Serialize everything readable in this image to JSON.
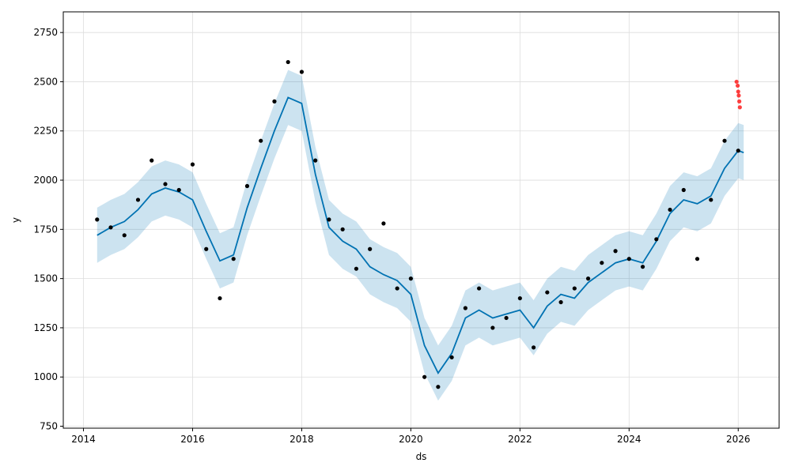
{
  "chart_data": {
    "type": "scatter",
    "title": "",
    "xlabel": "ds",
    "ylabel": "y",
    "xlim": [
      2013.63,
      2026.75
    ],
    "ylim": [
      740,
      2855
    ],
    "grid": true,
    "x_ticks": [
      2014,
      2016,
      2018,
      2020,
      2022,
      2024,
      2026
    ],
    "y_ticks": [
      750,
      1000,
      1250,
      1500,
      1750,
      2000,
      2250,
      2500,
      2750
    ],
    "colors": {
      "observed": "#000000",
      "forecast_line": "#0072B2",
      "uncertainty_band": "#0072B2",
      "anomaly": "#ff0000",
      "grid": "#dddddd"
    },
    "forecast": {
      "x": [
        2014.25,
        2014.5,
        2014.75,
        2015.0,
        2015.25,
        2015.5,
        2015.75,
        2016.0,
        2016.25,
        2016.5,
        2016.75,
        2017.0,
        2017.25,
        2017.5,
        2017.75,
        2018.0,
        2018.25,
        2018.5,
        2018.75,
        2019.0,
        2019.25,
        2019.5,
        2019.75,
        2020.0,
        2020.25,
        2020.5,
        2020.75,
        2021.0,
        2021.25,
        2021.5,
        2021.75,
        2022.0,
        2022.25,
        2022.5,
        2022.75,
        2023.0,
        2023.25,
        2023.5,
        2023.75,
        2024.0,
        2024.25,
        2024.5,
        2024.75,
        2025.0,
        2025.25,
        2025.5,
        2025.75,
        2026.0,
        2026.1
      ],
      "yhat": [
        1720,
        1760,
        1790,
        1850,
        1930,
        1960,
        1940,
        1900,
        1740,
        1590,
        1620,
        1860,
        2060,
        2250,
        2420,
        2390,
        2030,
        1760,
        1690,
        1650,
        1560,
        1520,
        1490,
        1420,
        1160,
        1020,
        1120,
        1300,
        1340,
        1300,
        1320,
        1340,
        1250,
        1360,
        1420,
        1400,
        1480,
        1530,
        1580,
        1600,
        1580,
        1690,
        1830,
        1900,
        1880,
        1920,
        2060,
        2150,
        2140
      ],
      "lower": [
        1580,
        1620,
        1650,
        1710,
        1790,
        1820,
        1800,
        1760,
        1600,
        1450,
        1480,
        1720,
        1920,
        2110,
        2280,
        2250,
        1890,
        1620,
        1550,
        1510,
        1420,
        1380,
        1350,
        1280,
        1020,
        880,
        980,
        1160,
        1200,
        1160,
        1180,
        1200,
        1110,
        1220,
        1280,
        1260,
        1340,
        1390,
        1440,
        1460,
        1440,
        1550,
        1690,
        1760,
        1740,
        1780,
        1920,
        2010,
        2000
      ],
      "upper": [
        1860,
        1900,
        1930,
        1990,
        2070,
        2100,
        2080,
        2040,
        1880,
        1730,
        1760,
        2000,
        2200,
        2390,
        2560,
        2530,
        2170,
        1900,
        1830,
        1790,
        1700,
        1660,
        1630,
        1560,
        1300,
        1160,
        1260,
        1440,
        1480,
        1440,
        1460,
        1480,
        1390,
        1500,
        1560,
        1540,
        1620,
        1670,
        1720,
        1740,
        1720,
        1830,
        1970,
        2040,
        2020,
        2060,
        2200,
        2290,
        2280
      ]
    },
    "observed": {
      "x": [
        2014.25,
        2014.5,
        2014.75,
        2015.0,
        2015.25,
        2015.5,
        2015.75,
        2016.0,
        2016.25,
        2016.5,
        2016.75,
        2017.0,
        2017.25,
        2017.5,
        2017.75,
        2018.0,
        2018.25,
        2018.5,
        2018.75,
        2019.0,
        2019.25,
        2019.5,
        2019.75,
        2020.0,
        2020.25,
        2020.5,
        2020.75,
        2021.0,
        2021.25,
        2021.5,
        2021.75,
        2022.0,
        2022.25,
        2022.5,
        2022.75,
        2023.0,
        2023.25,
        2023.5,
        2023.75,
        2024.0,
        2024.25,
        2024.5,
        2024.75,
        2025.0,
        2025.25,
        2025.5,
        2025.75,
        2026.0
      ],
      "y": [
        1800,
        1760,
        1720,
        1900,
        2100,
        1980,
        1950,
        2080,
        1650,
        1400,
        1600,
        1970,
        2200,
        2400,
        2600,
        2550,
        2100,
        1800,
        1750,
        1550,
        1650,
        1780,
        1450,
        1500,
        1000,
        950,
        1100,
        1350,
        1450,
        1250,
        1300,
        1400,
        1150,
        1430,
        1380,
        1450,
        1500,
        1580,
        1640,
        1600,
        1560,
        1700,
        1850,
        1950,
        1600,
        1900,
        2200,
        2150
      ]
    },
    "anomalies": {
      "x": [
        2025.97,
        2025.99,
        2026.0,
        2026.01,
        2026.02,
        2026.03
      ],
      "y": [
        2500,
        2480,
        2450,
        2430,
        2400,
        2370
      ]
    }
  }
}
